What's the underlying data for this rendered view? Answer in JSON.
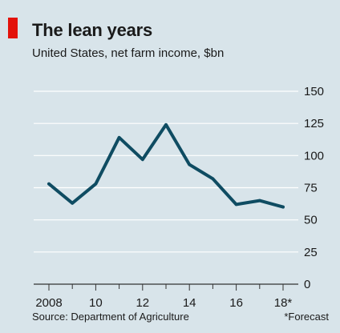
{
  "chart_data": {
    "type": "line",
    "title": "The lean years",
    "subtitle": "United States, net farm income, $bn",
    "x": [
      2008,
      2009,
      2010,
      2011,
      2012,
      2013,
      2014,
      2015,
      2016,
      2017,
      2018
    ],
    "series": [
      {
        "values": [
          78,
          63,
          78,
          114,
          97,
          124,
          93,
          82,
          62,
          65,
          60
        ]
      }
    ],
    "x_tick_values": [
      2008,
      2010,
      2012,
      2014,
      2016,
      2018
    ],
    "x_tick_labels": [
      "2008",
      "10",
      "12",
      "14",
      "16",
      "18*"
    ],
    "y_ticks": [
      0,
      25,
      50,
      75,
      100,
      125,
      150
    ],
    "y_tick_labels": [
      "0",
      "25",
      "50",
      "75",
      "100",
      "125",
      "150"
    ],
    "xlim": [
      2007.5,
      2018.5
    ],
    "ylim": [
      0,
      150
    ],
    "y_axis_side": "right",
    "grid": true,
    "source": "Source: Department of Agriculture",
    "footnote": "*Forecast",
    "colors": {
      "background": "#d8e4ea",
      "line": "#0f4c62",
      "grid": "#ffffff",
      "accent": "#e3120b"
    }
  }
}
